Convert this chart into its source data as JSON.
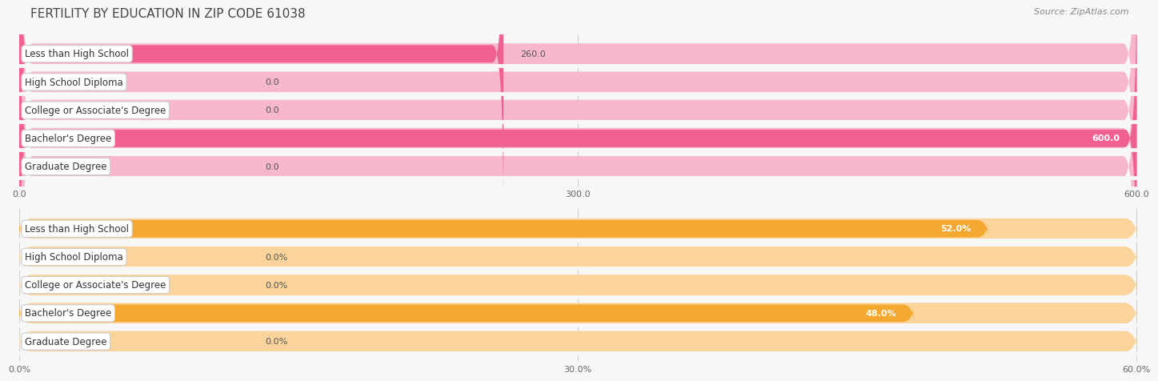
{
  "title": "FERTILITY BY EDUCATION IN ZIP CODE 61038",
  "source": "Source: ZipAtlas.com",
  "top_chart": {
    "categories": [
      "Less than High School",
      "High School Diploma",
      "College or Associate's Degree",
      "Bachelor's Degree",
      "Graduate Degree"
    ],
    "values": [
      260.0,
      0.0,
      0.0,
      600.0,
      0.0
    ],
    "bar_color": "#f06090",
    "bar_color_light": "#f7b8cc",
    "xlim": [
      0,
      600
    ],
    "xticks": [
      0.0,
      300.0,
      600.0
    ],
    "xtick_labels": [
      "0.0",
      "300.0",
      "600.0"
    ],
    "value_labels": [
      "260.0",
      "0.0",
      "0.0",
      "600.0",
      "0.0"
    ],
    "value_inside": [
      false,
      false,
      false,
      true,
      false
    ]
  },
  "bottom_chart": {
    "categories": [
      "Less than High School",
      "High School Diploma",
      "College or Associate's Degree",
      "Bachelor's Degree",
      "Graduate Degree"
    ],
    "values": [
      52.0,
      0.0,
      0.0,
      48.0,
      0.0
    ],
    "bar_color": "#f5a830",
    "bar_color_light": "#fad49a",
    "xlim": [
      0,
      60
    ],
    "xticks": [
      0.0,
      30.0,
      60.0
    ],
    "xtick_labels": [
      "0.0%",
      "30.0%",
      "60.0%"
    ],
    "value_labels": [
      "52.0%",
      "0.0%",
      "0.0%",
      "48.0%",
      "0.0%"
    ],
    "value_inside": [
      true,
      false,
      false,
      true,
      false
    ]
  },
  "bg_color": "#f7f7f7",
  "row_bg_color": "#ebebeb",
  "label_box_color": "#ffffff",
  "label_box_edge": "#cccccc",
  "label_fontsize": 8.5,
  "value_fontsize": 8.0,
  "title_fontsize": 11,
  "source_fontsize": 8.0,
  "title_color": "#444444",
  "source_color": "#888888",
  "value_color_inside": "#ffffff",
  "value_color_outside": "#555555"
}
